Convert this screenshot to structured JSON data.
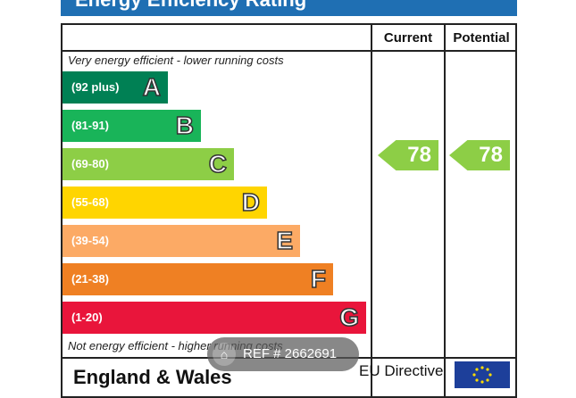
{
  "title": "Energy Efficiency Rating",
  "columns": {
    "current": "Current",
    "potential": "Potential"
  },
  "top_caption": "Very energy efficient - lower running costs",
  "bottom_caption": "Not energy efficient - higher running costs",
  "bands": [
    {
      "range": "(92 plus)",
      "letter": "A",
      "color": "#008054"
    },
    {
      "range": "(81-91)",
      "letter": "B",
      "color": "#19b459"
    },
    {
      "range": "(69-80)",
      "letter": "C",
      "color": "#8dce46"
    },
    {
      "range": "(55-68)",
      "letter": "D",
      "color": "#ffd500"
    },
    {
      "range": "(39-54)",
      "letter": "E",
      "color": "#fcaa65"
    },
    {
      "range": "(21-38)",
      "letter": "F",
      "color": "#ef8023"
    },
    {
      "range": "(1-20)",
      "letter": "G",
      "color": "#e9153b"
    }
  ],
  "current_rating": "78",
  "potential_rating": "78",
  "rating_color": "#8dce46",
  "footer": {
    "region": "England & Wales",
    "directive": "EU Directive"
  },
  "watermark": {
    "text": "REF # 2662691",
    "icon": "home-icon"
  }
}
